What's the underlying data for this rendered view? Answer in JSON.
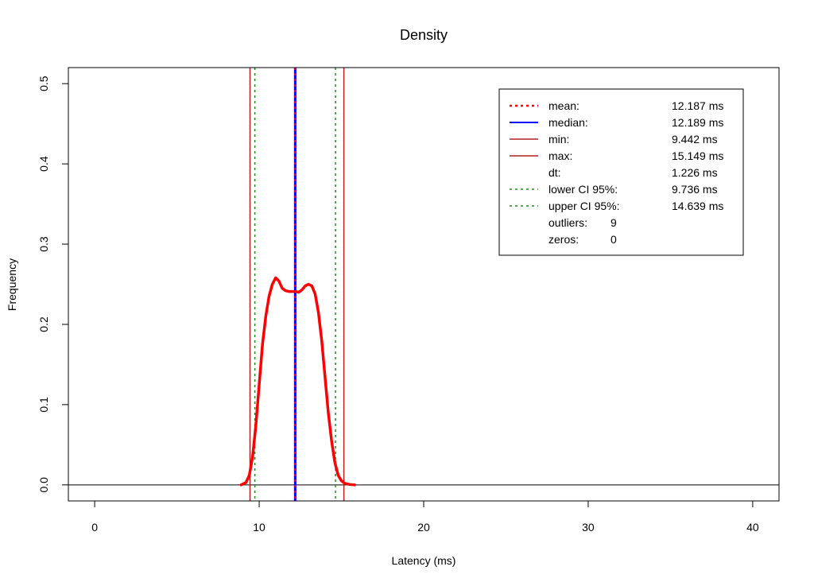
{
  "chart_data": {
    "type": "line",
    "title": "Density",
    "xlabel": "Latency (ms)",
    "ylabel": "Frequency",
    "xlim": [
      -1.6,
      41.6
    ],
    "ylim": [
      -0.02,
      0.52
    ],
    "xticks": [
      0,
      10,
      20,
      30,
      40
    ],
    "yticks": [
      0.0,
      0.1,
      0.2,
      0.3,
      0.4,
      0.5
    ],
    "grid": false,
    "legend_position": "top-right",
    "baseline_y": 0,
    "density": {
      "color": "#ff0000",
      "x": [
        8.9,
        9.2,
        9.4,
        9.6,
        9.8,
        10.0,
        10.2,
        10.4,
        10.6,
        10.8,
        11.0,
        11.2,
        11.4,
        11.6,
        11.8,
        12.0,
        12.2,
        12.4,
        12.6,
        12.8,
        13.0,
        13.2,
        13.4,
        13.6,
        13.8,
        14.0,
        14.2,
        14.4,
        14.6,
        14.8,
        15.0,
        15.2,
        15.5,
        15.8
      ],
      "y": [
        0.0,
        0.003,
        0.012,
        0.035,
        0.075,
        0.125,
        0.175,
        0.21,
        0.235,
        0.25,
        0.258,
        0.254,
        0.245,
        0.242,
        0.241,
        0.241,
        0.241,
        0.24,
        0.243,
        0.248,
        0.25,
        0.248,
        0.238,
        0.215,
        0.18,
        0.135,
        0.09,
        0.055,
        0.028,
        0.012,
        0.005,
        0.002,
        0.0005,
        0.0
      ]
    },
    "vlines": [
      {
        "name": "mean",
        "x": 12.187,
        "color": "#ff0000",
        "style": "dotted"
      },
      {
        "name": "median",
        "x": 12.189,
        "color": "#0000ff",
        "style": "solid"
      },
      {
        "name": "min",
        "x": 9.442,
        "color": "#b22222",
        "style": "solid"
      },
      {
        "name": "max",
        "x": 15.149,
        "color": "#b22222",
        "style": "solid"
      },
      {
        "name": "lower CI 95%",
        "x": 9.736,
        "color": "#228b22",
        "style": "dotted"
      },
      {
        "name": "upper CI 95%",
        "x": 14.639,
        "color": "#228b22",
        "style": "dotted"
      }
    ],
    "legend": [
      {
        "label": "mean:",
        "value": "12.187 ms",
        "color": "#ff0000",
        "style": "dotted"
      },
      {
        "label": "median:",
        "value": "12.189 ms",
        "color": "#0000ff",
        "style": "solid"
      },
      {
        "label": "min:",
        "value": "9.442 ms",
        "color": "#b22222",
        "style": "solid"
      },
      {
        "label": "max:",
        "value": "15.149 ms",
        "color": "#b22222",
        "style": "solid"
      },
      {
        "label": "dt:",
        "value": "1.226 ms",
        "color": "",
        "style": "none"
      },
      {
        "label": "lower CI 95%:",
        "value": "9.736 ms",
        "color": "#228b22",
        "style": "dotted"
      },
      {
        "label": "upper CI 95%:",
        "value": "14.639 ms",
        "color": "#228b22",
        "style": "dotted"
      },
      {
        "label": "outliers:",
        "value": "9",
        "color": "",
        "style": "none"
      },
      {
        "label": "zeros:",
        "value": "0",
        "color": "",
        "style": "none"
      }
    ]
  }
}
